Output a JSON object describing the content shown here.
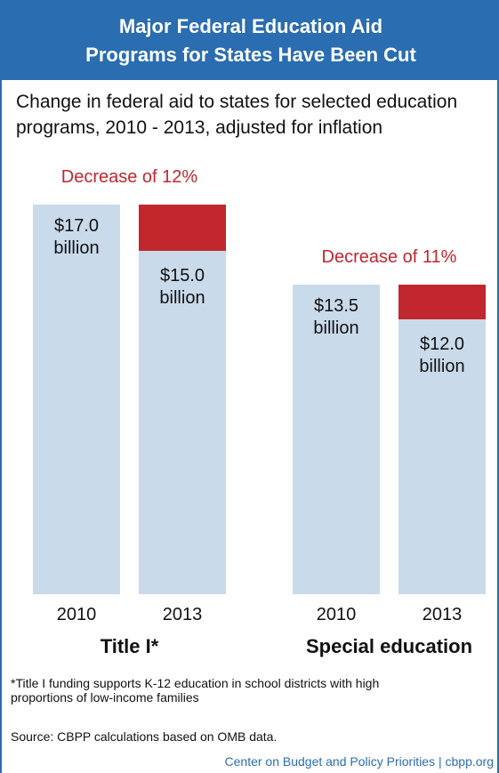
{
  "chart_data": {
    "type": "bar",
    "title": "Major Federal Education Aid Programs for States Have Been Cut",
    "subtitle": "Change in federal aid to states for selected education programs, 2010 - 2013, adjusted for inflation",
    "bar_color": "#c9daea",
    "decrease_color": "#c1272d",
    "groups": [
      {
        "name": "Title I*",
        "categories": [
          "2010",
          "2013"
        ],
        "values": [
          17.0,
          15.0
        ],
        "value_labels": [
          "$17.0 billion",
          "$15.0 billion"
        ],
        "annotation": "Decrease of 12%"
      },
      {
        "name": "Special education",
        "categories": [
          "2010",
          "2013"
        ],
        "values": [
          13.5,
          12.0
        ],
        "value_labels": [
          "$13.5 billion",
          "$12.0 billion"
        ],
        "annotation": "Decrease of 11%"
      }
    ],
    "footnote": "*Title I funding supports K-12 education in school districts with high proportions of low-income families",
    "source": "Source: CBPP calculations based on OMB data.",
    "credit": "Center on Budget and Policy Priorities | cbpp.org"
  }
}
